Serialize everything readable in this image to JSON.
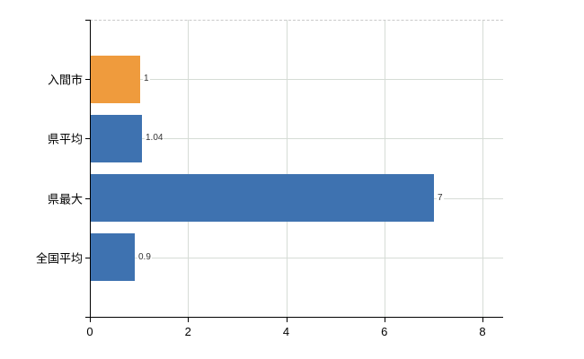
{
  "chart": {
    "background": "#ffffff",
    "axis_color": "#000000",
    "grid_color": "#d6dcd6",
    "top_border_color": "#c9c9c9",
    "top_border_style": "dashed",
    "category_label_color": "#000000",
    "value_label_color": "#323232"
  },
  "chart_data": {
    "type": "bar",
    "orientation": "horizontal",
    "title": "",
    "xlabel": "",
    "ylabel": "",
    "categories": [
      "入間市",
      "県平均",
      "県最大",
      "全国平均"
    ],
    "values": [
      1,
      1.04,
      7,
      0.9
    ],
    "value_labels": [
      "1",
      "1.04",
      "7",
      "0.9"
    ],
    "bar_colors": [
      "#ef9b3d",
      "#3e72b0",
      "#3e72b0",
      "#3e72b0"
    ],
    "x_ticks": [
      "0",
      "2",
      "4",
      "6",
      "8"
    ],
    "x_tick_values": [
      0,
      2,
      4,
      6,
      8
    ],
    "xlim": [
      0,
      8.42
    ],
    "grid": true,
    "legend": false
  }
}
